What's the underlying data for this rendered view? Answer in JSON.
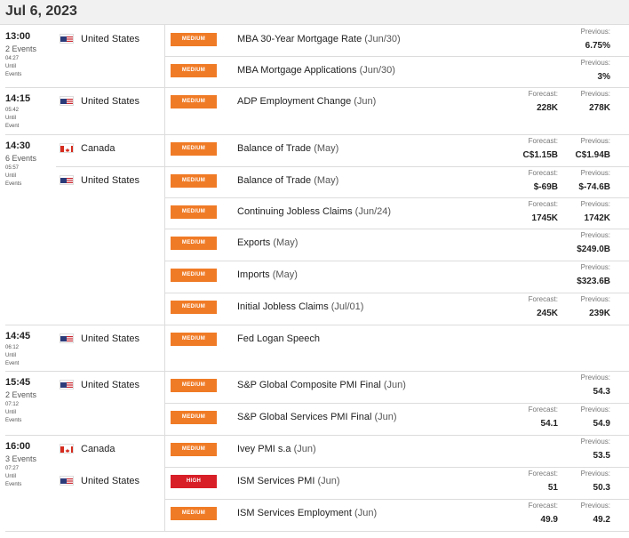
{
  "date": "Jul 6, 2023",
  "labels": {
    "forecast": "Forecast:",
    "previous": "Previous:"
  },
  "colors": {
    "medium": "#f07b26",
    "high": "#d81e27"
  },
  "groups": [
    {
      "time": "13:00",
      "events": "2 Events",
      "until_time": "04:27",
      "until_1": "Until",
      "until_2": "Events"
    },
    {
      "time": "14:15",
      "events": "",
      "until_time": "05:42",
      "until_1": "Until",
      "until_2": "Event"
    },
    {
      "time": "14:30",
      "events": "6 Events",
      "until_time": "05:57",
      "until_1": "Until",
      "until_2": "Events"
    },
    {
      "time": "14:45",
      "events": "",
      "until_time": "06:12",
      "until_1": "Until",
      "until_2": "Event"
    },
    {
      "time": "15:45",
      "events": "2 Events",
      "until_time": "07:12",
      "until_1": "Until",
      "until_2": "Events"
    },
    {
      "time": "16:00",
      "events": "3 Events",
      "until_time": "07:27",
      "until_1": "Until",
      "until_2": "Events"
    }
  ],
  "country_names": [
    {
      "flag": "us-flag",
      "name": "United States"
    },
    {
      "flag": "us-flag",
      "name": "United States"
    },
    {
      "flag": "ca-flag",
      "name": "Canada"
    },
    {
      "flag": "us-flag",
      "name": "United States"
    },
    {
      "flag": "us-flag",
      "name": "United States"
    },
    {
      "flag": "us-flag",
      "name": "United States"
    },
    {
      "flag": "ca-flag",
      "name": "Canada"
    },
    {
      "flag": "us-flag",
      "name": "United States"
    }
  ],
  "rows": [
    {
      "impact": "MEDIUM",
      "name": "MBA 30-Year Mortgage Rate",
      "period": "(Jun/30)",
      "forecast": "",
      "previous": "6.75%"
    },
    {
      "impact": "MEDIUM",
      "name": "MBA Mortgage Applications",
      "period": "(Jun/30)",
      "forecast": "",
      "previous": "3%"
    },
    {
      "impact": "MEDIUM",
      "name": "ADP Employment Change",
      "period": "(Jun)",
      "forecast": "228K",
      "previous": "278K"
    },
    {
      "impact": "MEDIUM",
      "name": "Balance of Trade",
      "period": "(May)",
      "forecast": "C$1.15B",
      "previous": "C$1.94B"
    },
    {
      "impact": "MEDIUM",
      "name": "Balance of Trade",
      "period": "(May)",
      "forecast": "$-69B",
      "previous": "$-74.6B"
    },
    {
      "impact": "MEDIUM",
      "name": "Continuing Jobless Claims",
      "period": "(Jun/24)",
      "forecast": "1745K",
      "previous": "1742K"
    },
    {
      "impact": "MEDIUM",
      "name": "Exports",
      "period": "(May)",
      "forecast": "",
      "previous": "$249.0B"
    },
    {
      "impact": "MEDIUM",
      "name": "Imports",
      "period": "(May)",
      "forecast": "",
      "previous": "$323.6B"
    },
    {
      "impact": "MEDIUM",
      "name": "Initial Jobless Claims",
      "period": "(Jul/01)",
      "forecast": "245K",
      "previous": "239K"
    },
    {
      "impact": "MEDIUM",
      "name": "Fed Logan Speech",
      "period": "",
      "forecast": "",
      "previous": ""
    },
    {
      "impact": "MEDIUM",
      "name": "S&P Global Composite PMI Final",
      "period": "(Jun)",
      "forecast": "",
      "previous": "54.3"
    },
    {
      "impact": "MEDIUM",
      "name": "S&P Global Services PMI Final",
      "period": "(Jun)",
      "forecast": "54.1",
      "previous": "54.9"
    },
    {
      "impact": "MEDIUM",
      "name": "Ivey PMI s.a",
      "period": "(Jun)",
      "forecast": "",
      "previous": "53.5"
    },
    {
      "impact": "HIGH",
      "name": "ISM Services PMI",
      "period": "(Jun)",
      "forecast": "51",
      "previous": "50.3"
    },
    {
      "impact": "MEDIUM",
      "name": "ISM Services Employment",
      "period": "(Jun)",
      "forecast": "49.9",
      "previous": "49.2"
    }
  ]
}
